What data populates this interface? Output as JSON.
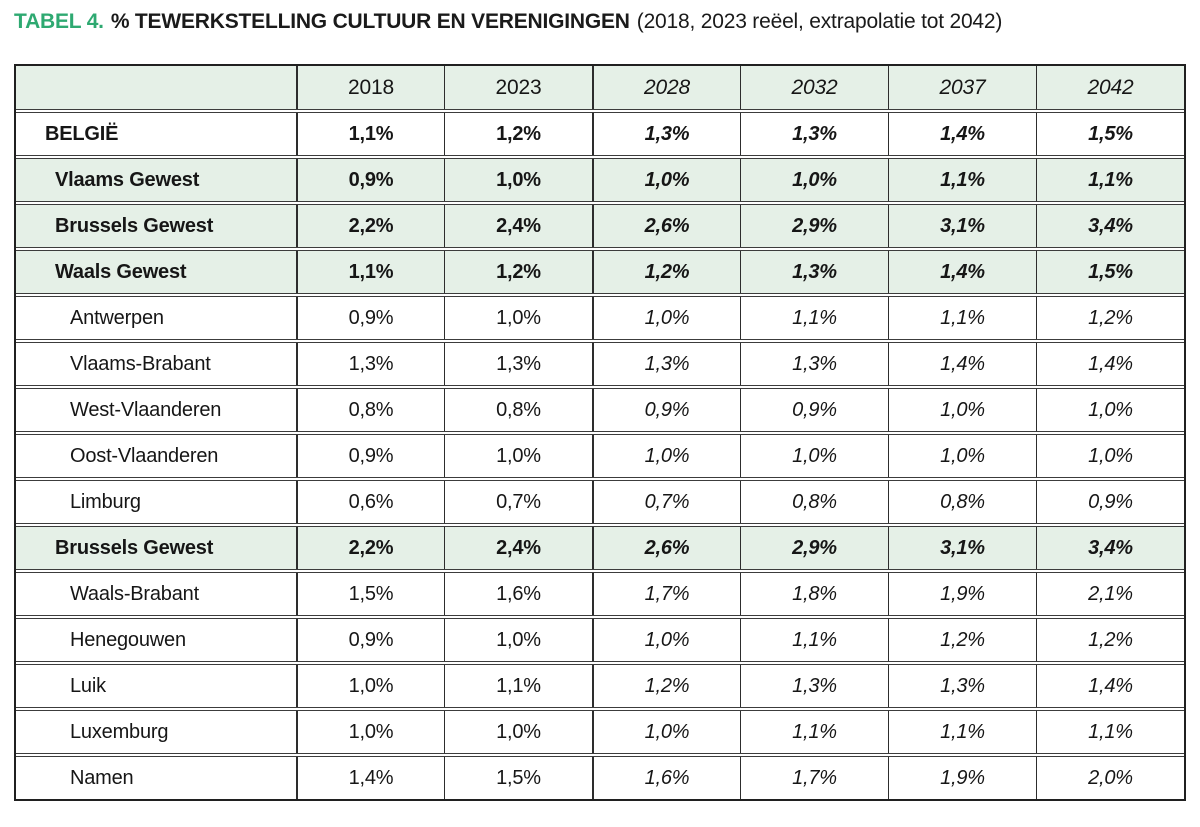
{
  "title": {
    "label": "TABEL 4.",
    "main": "% TEWERKSTELLING CULTUUR EN VERENIGINGEN",
    "suffix": "(2018, 2023 reëel, extrapolatie tot 2042)"
  },
  "colors": {
    "accent_green": "#2ea971",
    "row_green": "#e5f0e7",
    "grid_line": "#2d2d2d",
    "text": "#161616"
  },
  "table": {
    "columns": [
      "",
      "2018",
      "2023",
      "2028",
      "2032",
      "2037",
      "2042"
    ],
    "real_columns": [
      "2018",
      "2023"
    ],
    "extrapolated_columns": [
      "2028",
      "2032",
      "2037",
      "2042"
    ],
    "extrapolated_start_index": 3,
    "rows": [
      {
        "label": "BELGIË",
        "level": "country",
        "values": [
          "1,1%",
          "1,2%",
          "1,3%",
          "1,3%",
          "1,4%",
          "1,5%"
        ]
      },
      {
        "label": "Vlaams Gewest",
        "level": "region",
        "values": [
          "0,9%",
          "1,0%",
          "1,0%",
          "1,0%",
          "1,1%",
          "1,1%"
        ]
      },
      {
        "label": "Brussels Gewest",
        "level": "region",
        "values": [
          "2,2%",
          "2,4%",
          "2,6%",
          "2,9%",
          "3,1%",
          "3,4%"
        ]
      },
      {
        "label": "Waals Gewest",
        "level": "region",
        "values": [
          "1,1%",
          "1,2%",
          "1,2%",
          "1,3%",
          "1,4%",
          "1,5%"
        ]
      },
      {
        "label": "Antwerpen",
        "level": "province",
        "values": [
          "0,9%",
          "1,0%",
          "1,0%",
          "1,1%",
          "1,1%",
          "1,2%"
        ]
      },
      {
        "label": "Vlaams-Brabant",
        "level": "province",
        "values": [
          "1,3%",
          "1,3%",
          "1,3%",
          "1,3%",
          "1,4%",
          "1,4%"
        ]
      },
      {
        "label": "West-Vlaanderen",
        "level": "province",
        "values": [
          "0,8%",
          "0,8%",
          "0,9%",
          "0,9%",
          "1,0%",
          "1,0%"
        ]
      },
      {
        "label": "Oost-Vlaanderen",
        "level": "province",
        "values": [
          "0,9%",
          "1,0%",
          "1,0%",
          "1,0%",
          "1,0%",
          "1,0%"
        ]
      },
      {
        "label": "Limburg",
        "level": "province",
        "values": [
          "0,6%",
          "0,7%",
          "0,7%",
          "0,8%",
          "0,8%",
          "0,9%"
        ]
      },
      {
        "label": "Brussels Gewest",
        "level": "region",
        "values": [
          "2,2%",
          "2,4%",
          "2,6%",
          "2,9%",
          "3,1%",
          "3,4%"
        ]
      },
      {
        "label": "Waals-Brabant",
        "level": "province",
        "values": [
          "1,5%",
          "1,6%",
          "1,7%",
          "1,8%",
          "1,9%",
          "2,1%"
        ]
      },
      {
        "label": "Henegouwen",
        "level": "province",
        "values": [
          "0,9%",
          "1,0%",
          "1,0%",
          "1,1%",
          "1,2%",
          "1,2%"
        ]
      },
      {
        "label": "Luik",
        "level": "province",
        "values": [
          "1,0%",
          "1,1%",
          "1,2%",
          "1,3%",
          "1,3%",
          "1,4%"
        ]
      },
      {
        "label": "Luxemburg",
        "level": "province",
        "values": [
          "1,0%",
          "1,0%",
          "1,0%",
          "1,1%",
          "1,1%",
          "1,1%"
        ]
      },
      {
        "label": "Namen",
        "level": "province",
        "values": [
          "1,4%",
          "1,5%",
          "1,6%",
          "1,7%",
          "1,9%",
          "2,0%"
        ]
      }
    ]
  }
}
